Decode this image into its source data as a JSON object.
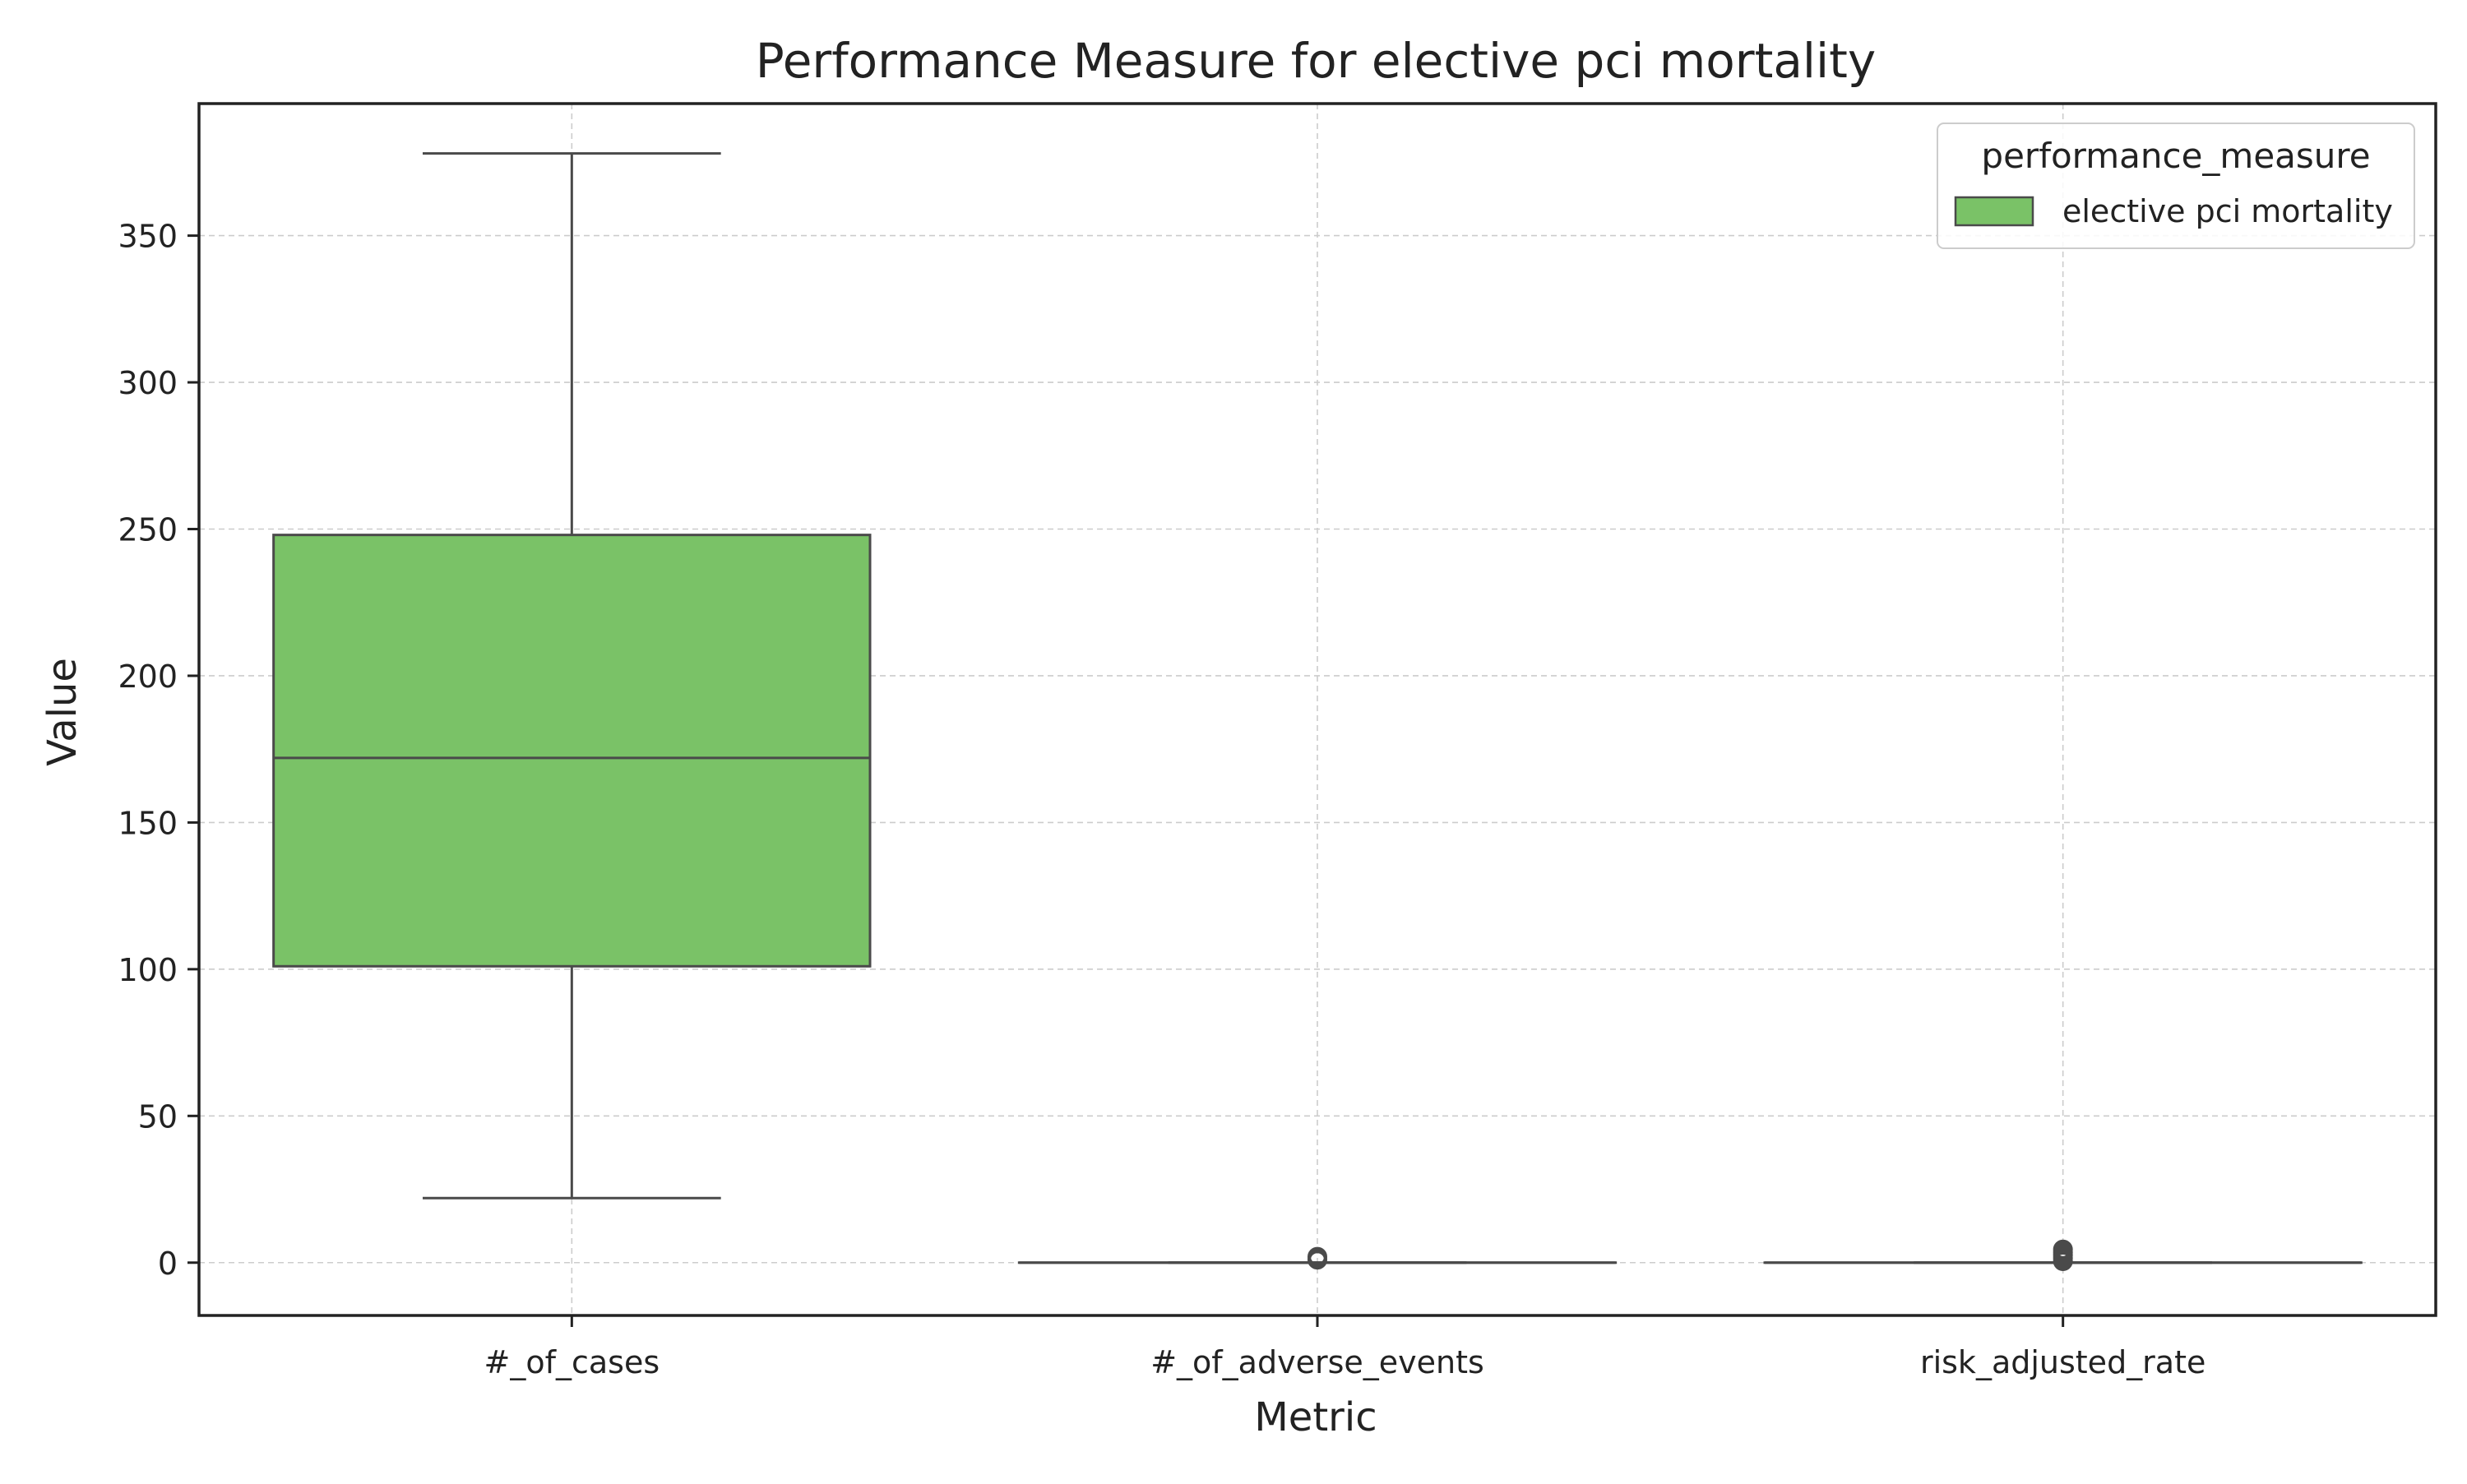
{
  "chart_data": {
    "type": "box",
    "title": "Performance Measure for elective pci mortality",
    "xlabel": "Metric",
    "ylabel": "Value",
    "categories": [
      "#_of_cases",
      "#_of_adverse_events",
      "risk_adjusted_rate"
    ],
    "ylim": [
      -18,
      395
    ],
    "yticks": [
      0,
      50,
      100,
      150,
      200,
      250,
      300,
      350
    ],
    "grid": true,
    "legend": {
      "title": "performance_measure",
      "placement": "top-right",
      "entries": [
        {
          "name": "elective pci mortality",
          "color": "#7ac267"
        }
      ]
    },
    "series": [
      {
        "name": "elective pci mortality",
        "color": "#7ac267",
        "boxes": [
          {
            "category": "#_of_cases",
            "whisker_low": 22,
            "q1": 101,
            "median": 172,
            "q3": 248,
            "whisker_high": 378,
            "outliers": []
          },
          {
            "category": "#_of_adverse_events",
            "whisker_low": 0,
            "q1": 0,
            "median": 0,
            "q3": 0,
            "whisker_high": 0,
            "outliers": [
              1,
              2
            ]
          },
          {
            "category": "risk_adjusted_rate",
            "whisker_low": 0,
            "q1": 0,
            "median": 0,
            "q3": 0,
            "whisker_high": 0,
            "outliers": [
              0.5,
              1.5,
              2.5,
              3.5,
              4.5
            ]
          }
        ]
      }
    ]
  }
}
